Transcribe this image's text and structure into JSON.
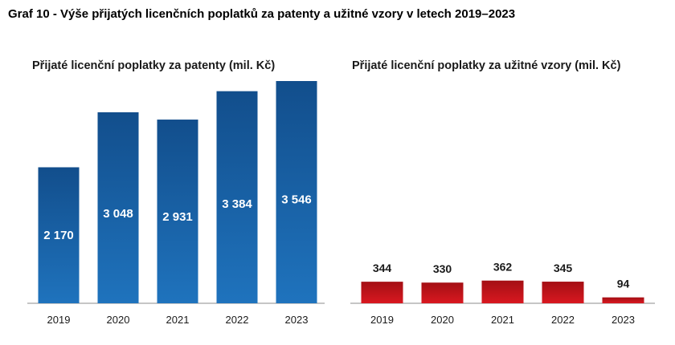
{
  "figure_title": "Graf 10 - Výše přijatých licenčních poplatků za patenty a užitné vzory v letech 2019–2023",
  "chart_data": [
    {
      "type": "bar",
      "title": "Přijaté licenční poplatky za patenty (mil. Kč)",
      "categories": [
        "2019",
        "2020",
        "2021",
        "2022",
        "2023"
      ],
      "values": [
        2170,
        3048,
        2931,
        3384,
        3546
      ],
      "value_labels": [
        "2 170",
        "3 048",
        "2 931",
        "3 384",
        "3 546"
      ],
      "label_position": "inside",
      "color": "#1f6db4",
      "color_dark": "#124e8c",
      "xlabel": "",
      "ylabel": "",
      "ylim": [
        0,
        3546
      ],
      "grid": false
    },
    {
      "type": "bar",
      "title": "Přijaté licenční poplatky za užitné vzory (mil. Kč)",
      "categories": [
        "2019",
        "2020",
        "2021",
        "2022",
        "2023"
      ],
      "values": [
        344,
        330,
        362,
        345,
        94
      ],
      "value_labels": [
        "344",
        "330",
        "362",
        "345",
        "94"
      ],
      "label_position": "outside",
      "color": "#d5151c",
      "color_dark": "#a40f14",
      "xlabel": "",
      "ylabel": "",
      "grid": false
    }
  ]
}
